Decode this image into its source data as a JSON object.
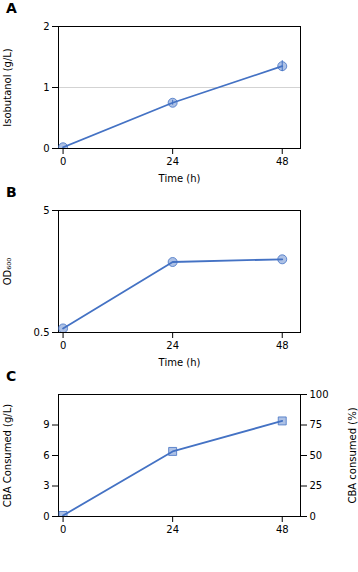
{
  "chart_data": [
    {
      "type": "line",
      "title": "A",
      "x": [
        0,
        24,
        48
      ],
      "values": [
        0.02,
        0.75,
        1.35
      ],
      "errors": [
        0.0,
        0.04,
        0.09
      ],
      "xlabel": "Time (h)",
      "ylabel": "Isobutanol (g/L)",
      "xlim": [
        -1,
        52
      ],
      "xticks": [
        0,
        24,
        48
      ],
      "ylim": [
        0,
        2
      ],
      "yticks": [
        0,
        1,
        2
      ],
      "hline": 1.0,
      "color": "#4472C4",
      "marker": "circle"
    },
    {
      "type": "line",
      "title": "B",
      "x": [
        0,
        24,
        48
      ],
      "values": [
        0.65,
        3.1,
        3.2
      ],
      "xlabel": "Time (h)",
      "ylabel": "OD₆₀₀",
      "xlim": [
        -1,
        52
      ],
      "xticks": [
        0,
        24,
        48
      ],
      "ylim": [
        0.5,
        5
      ],
      "yticks": [
        0.5,
        5
      ],
      "color": "#4472C4",
      "marker": "circle"
    },
    {
      "type": "line",
      "title": "C",
      "x": [
        0,
        24,
        48
      ],
      "values": [
        0.1,
        6.4,
        9.4
      ],
      "ylabel": "CBA Consumed (g/L)",
      "y2label": "CBA consumed (%)",
      "xlim": [
        -1,
        52
      ],
      "xticks": [
        0,
        24,
        48
      ],
      "ylim": [
        0,
        12
      ],
      "yticks": [
        0,
        3,
        6,
        9
      ],
      "y2lim": [
        0,
        100
      ],
      "y2ticks": [
        0,
        25,
        50,
        75,
        100
      ],
      "color": "#4472C4",
      "marker": "square"
    }
  ]
}
